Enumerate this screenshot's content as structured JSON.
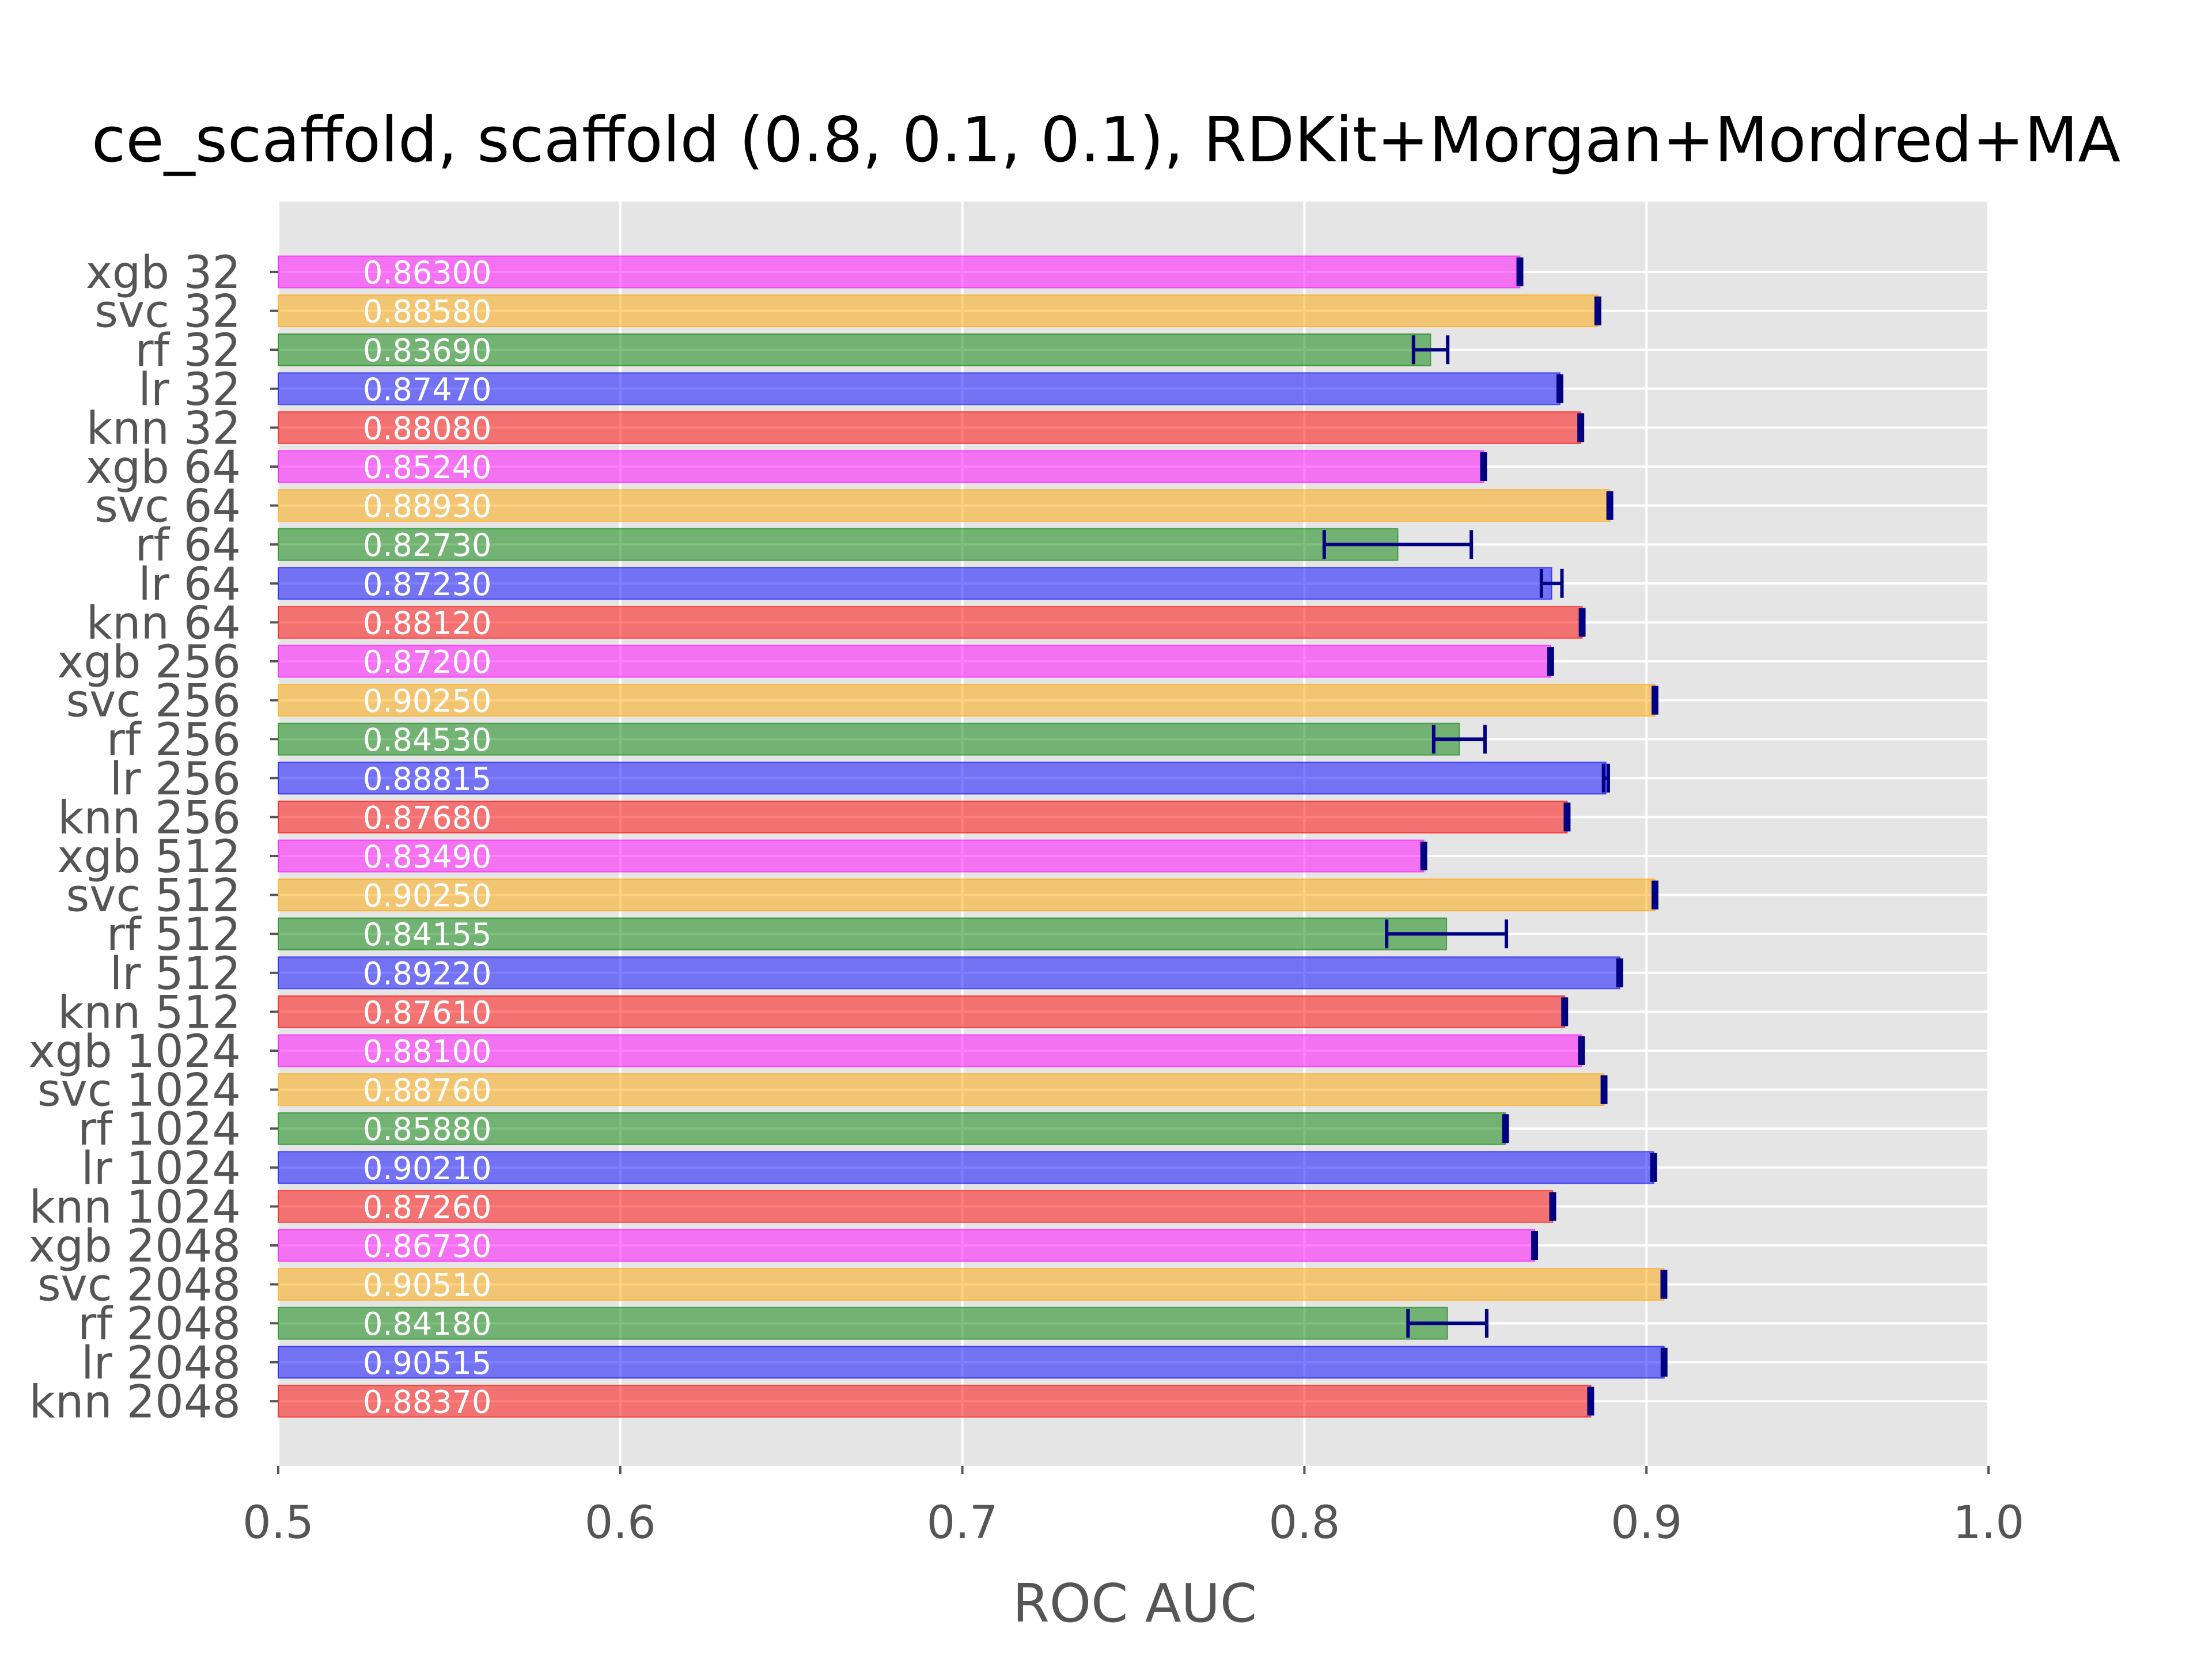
{
  "chart_data": {
    "type": "bar",
    "orientation": "horizontal",
    "title": "ce_scaffold, scaffold (0.8, 0.1, 0.1), RDKit+Morgan+Mordred+MA",
    "xlabel": "ROC AUC",
    "ylabel": "",
    "xlim": [
      0.5,
      1.0
    ],
    "xticks": [
      "0.5",
      "0.6",
      "0.7",
      "0.8",
      "0.9",
      "1.0"
    ],
    "grid": true,
    "legend": "none",
    "colors": {
      "xgb": "#ff00ff",
      "svc": "#ffa500",
      "rf": "#008000",
      "lr": "#0000ff",
      "knn": "#ff0000",
      "errorbar": "#000080",
      "background": "#e5e5e5",
      "text": "#555555"
    },
    "bars": [
      {
        "label": "xgb 32",
        "model": "xgb",
        "value": 0.863,
        "value_label": "0.86300",
        "err": 0.0005
      },
      {
        "label": "svc 32",
        "model": "svc",
        "value": 0.8858,
        "value_label": "0.88580",
        "err": 0.0005
      },
      {
        "label": "rf 32",
        "model": "rf",
        "value": 0.8369,
        "value_label": "0.83690",
        "err": 0.005
      },
      {
        "label": "lr 32",
        "model": "lr",
        "value": 0.8747,
        "value_label": "0.87470",
        "err": 0.0005
      },
      {
        "label": "knn 32",
        "model": "knn",
        "value": 0.8808,
        "value_label": "0.88080",
        "err": 0.0005
      },
      {
        "label": "xgb 64",
        "model": "xgb",
        "value": 0.8524,
        "value_label": "0.85240",
        "err": 0.0005
      },
      {
        "label": "svc 64",
        "model": "svc",
        "value": 0.8893,
        "value_label": "0.88930",
        "err": 0.0005
      },
      {
        "label": "rf 64",
        "model": "rf",
        "value": 0.8273,
        "value_label": "0.82730",
        "err": 0.0215
      },
      {
        "label": "lr 64",
        "model": "lr",
        "value": 0.8723,
        "value_label": "0.87230",
        "err": 0.003
      },
      {
        "label": "knn 64",
        "model": "knn",
        "value": 0.8812,
        "value_label": "0.88120",
        "err": 0.0005
      },
      {
        "label": "xgb 256",
        "model": "xgb",
        "value": 0.872,
        "value_label": "0.87200",
        "err": 0.0005
      },
      {
        "label": "svc 256",
        "model": "svc",
        "value": 0.9025,
        "value_label": "0.90250",
        "err": 0.0005
      },
      {
        "label": "rf 256",
        "model": "rf",
        "value": 0.8453,
        "value_label": "0.84530",
        "err": 0.0075
      },
      {
        "label": "lr 256",
        "model": "lr",
        "value": 0.88815,
        "value_label": "0.88815",
        "err": 0.0007
      },
      {
        "label": "knn 256",
        "model": "knn",
        "value": 0.8768,
        "value_label": "0.87680",
        "err": 0.0005
      },
      {
        "label": "xgb 512",
        "model": "xgb",
        "value": 0.8349,
        "value_label": "0.83490",
        "err": 0.0005
      },
      {
        "label": "svc 512",
        "model": "svc",
        "value": 0.9025,
        "value_label": "0.90250",
        "err": 0.0005
      },
      {
        "label": "rf 512",
        "model": "rf",
        "value": 0.84155,
        "value_label": "0.84155",
        "err": 0.0175
      },
      {
        "label": "lr 512",
        "model": "lr",
        "value": 0.8922,
        "value_label": "0.89220",
        "err": 0.0005
      },
      {
        "label": "knn 512",
        "model": "knn",
        "value": 0.8761,
        "value_label": "0.87610",
        "err": 0.0005
      },
      {
        "label": "xgb 1024",
        "model": "xgb",
        "value": 0.881,
        "value_label": "0.88100",
        "err": 0.0005
      },
      {
        "label": "svc 1024",
        "model": "svc",
        "value": 0.8876,
        "value_label": "0.88760",
        "err": 0.0005
      },
      {
        "label": "rf 1024",
        "model": "rf",
        "value": 0.8588,
        "value_label": "0.85880",
        "err": 0.0005
      },
      {
        "label": "lr 1024",
        "model": "lr",
        "value": 0.9021,
        "value_label": "0.90210",
        "err": 0.0005
      },
      {
        "label": "knn 1024",
        "model": "knn",
        "value": 0.8726,
        "value_label": "0.87260",
        "err": 0.0005
      },
      {
        "label": "xgb 2048",
        "model": "xgb",
        "value": 0.8673,
        "value_label": "0.86730",
        "err": 0.0005
      },
      {
        "label": "svc 2048",
        "model": "svc",
        "value": 0.9051,
        "value_label": "0.90510",
        "err": 0.0005
      },
      {
        "label": "rf 2048",
        "model": "rf",
        "value": 0.8418,
        "value_label": "0.84180",
        "err": 0.0115
      },
      {
        "label": "lr 2048",
        "model": "lr",
        "value": 0.90515,
        "value_label": "0.90515",
        "err": 0.0005
      },
      {
        "label": "knn 2048",
        "model": "knn",
        "value": 0.8837,
        "value_label": "0.88370",
        "err": 0.0005
      }
    ]
  }
}
